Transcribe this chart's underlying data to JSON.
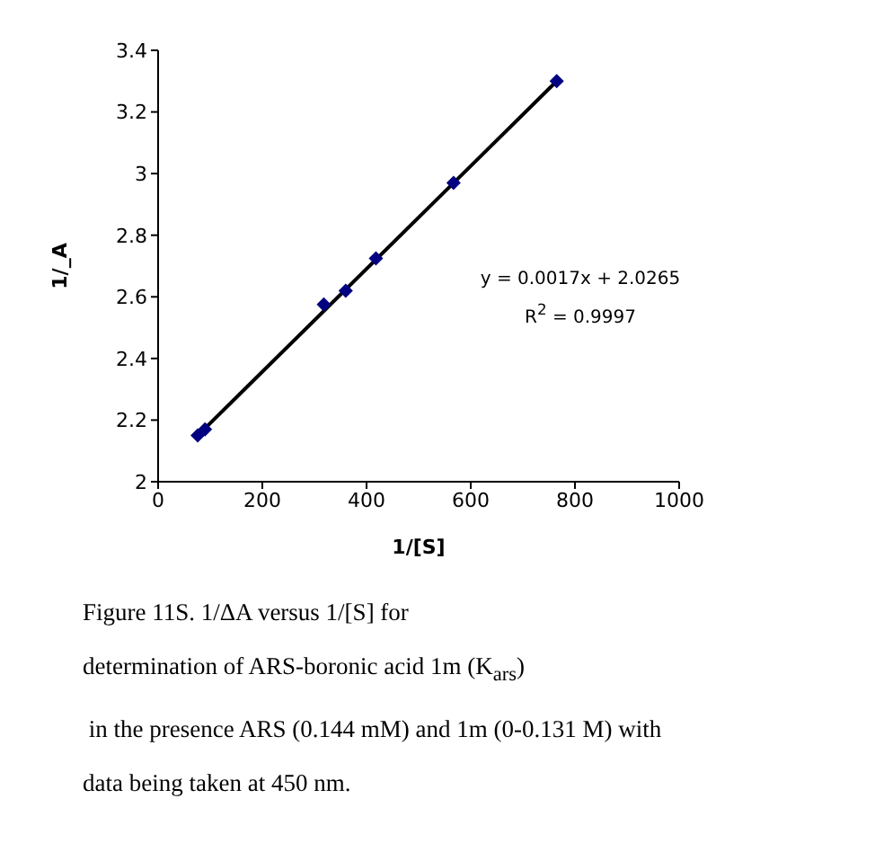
{
  "chart_data": {
    "type": "scatter",
    "xlabel": "1/[S]",
    "ylabel": "1/_A",
    "xlim": [
      0,
      1000
    ],
    "xticks": [
      0,
      200,
      400,
      600,
      800,
      1000
    ],
    "ylim": [
      2,
      3.4
    ],
    "yticks": [
      2,
      2.2,
      2.4,
      2.6,
      2.8,
      3,
      3.2,
      3.4
    ],
    "marker": "diamond",
    "series": [
      {
        "color": "#000080",
        "x": [
          76,
          90,
          318,
          360,
          418,
          567,
          765
        ],
        "values": [
          2.15,
          2.17,
          2.575,
          2.62,
          2.725,
          2.97,
          3.3
        ]
      },
      {
        "type": "line",
        "color": "#000000",
        "marker": "none",
        "x": [
          76,
          765
        ],
        "values": [
          2.15,
          3.3
        ]
      }
    ],
    "annotations": [
      "y = 0.0017x + 2.0265",
      "R$^{2}$ = 0.9997",
      "Figure 11S. 1/ΔA versus 1/[S] for",
      "determination of ARS-boronic acid 1m (K$_{ars}$)",
      " in the presence ARS (0.144 mM) and 1m (0-0.131 M) with",
      "data being taken at 450 nm."
    ]
  }
}
